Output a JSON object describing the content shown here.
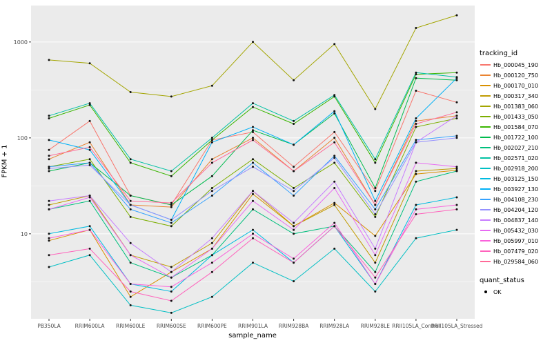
{
  "figure": {
    "y_axis_title": "FPKM + 1",
    "x_axis_title": "sample_name",
    "legend": {
      "tracking_title": "tracking_id",
      "quant_title": "quant_status",
      "ok_label": "OK"
    }
  },
  "chart_data": {
    "type": "line",
    "title": "",
    "xlabel": "sample_name",
    "ylabel": "FPKM + 1",
    "y_scale": "log10",
    "ylim": [
      1.3,
      2400
    ],
    "y_ticks": [
      10,
      100,
      1000
    ],
    "grid": true,
    "legend_position": "right",
    "panel_color": "#EBEBEB",
    "gridline_color": "#FFFFFF",
    "point_color": "#111111",
    "quant_status": {
      "label": "OK",
      "marker": "point",
      "color": "#000000"
    },
    "categories": [
      "PB350LA",
      "RRIM600LA",
      "RRIM600LE",
      "RRIM600SE",
      "RRIM600PE",
      "RRIM901LA",
      "RRIM928BA",
      "RRIM928LA",
      "RRIM928LE",
      "RRII105LA_Control",
      "RRII105LA_Stressed"
    ],
    "series": [
      {
        "name": "Hb_000045_190",
        "color": "#F8766D",
        "values": [
          75,
          150,
          25,
          20,
          95,
          115,
          50,
          115,
          28,
          310,
          235
        ]
      },
      {
        "name": "Hb_000120_750",
        "color": "#EA8331",
        "values": [
          60,
          90,
          20,
          19,
          60,
          100,
          45,
          100,
          20,
          150,
          170
        ]
      },
      {
        "name": "Hb_000170_010",
        "color": "#D89000",
        "values": [
          8.5,
          11,
          2.2,
          4,
          7,
          26,
          12,
          21,
          9.5,
          42,
          46
        ]
      },
      {
        "name": "Hb_000317_340",
        "color": "#C09B00",
        "values": [
          20,
          25,
          6,
          4.5,
          8,
          28,
          12,
          20,
          5,
          45,
          48
        ]
      },
      {
        "name": "Hb_001383_060",
        "color": "#A3A500",
        "values": [
          650,
          600,
          300,
          270,
          350,
          1000,
          400,
          950,
          200,
          1400,
          1900
        ]
      },
      {
        "name": "Hb_001433_050",
        "color": "#7CAE00",
        "values": [
          50,
          60,
          15,
          12,
          30,
          60,
          30,
          55,
          15,
          130,
          160
        ]
      },
      {
        "name": "Hb_001584_070",
        "color": "#39B600",
        "values": [
          160,
          220,
          55,
          40,
          95,
          210,
          140,
          270,
          55,
          460,
          480
        ]
      },
      {
        "name": "Hb_001722_100",
        "color": "#00BB4E",
        "values": [
          45,
          55,
          25,
          20,
          40,
          120,
          85,
          180,
          30,
          420,
          400
        ]
      },
      {
        "name": "Hb_002027_210",
        "color": "#00BF7D",
        "values": [
          18,
          22,
          5,
          3.5,
          6,
          18,
          10,
          12,
          4,
          35,
          45
        ]
      },
      {
        "name": "Hb_002571_020",
        "color": "#00C1A3",
        "values": [
          170,
          230,
          60,
          45,
          100,
          230,
          150,
          280,
          60,
          480,
          430
        ]
      },
      {
        "name": "Hb_002918_200",
        "color": "#00BFC4",
        "values": [
          4.5,
          6,
          1.8,
          1.5,
          2.2,
          5,
          3.2,
          7,
          2.5,
          9,
          11
        ]
      },
      {
        "name": "Hb_003125_150",
        "color": "#00BAE0",
        "values": [
          10,
          12,
          3,
          2.5,
          6,
          11,
          5,
          12,
          3,
          20,
          24
        ]
      },
      {
        "name": "Hb_003927_130",
        "color": "#00B0F6",
        "values": [
          95,
          75,
          20,
          14,
          90,
          130,
          85,
          190,
          22,
          160,
          420
        ]
      },
      {
        "name": "Hb_004108_230",
        "color": "#35A2FF",
        "values": [
          50,
          55,
          18,
          13,
          25,
          55,
          25,
          65,
          18,
          95,
          105
        ]
      },
      {
        "name": "Hb_004204_120",
        "color": "#9590FF",
        "values": [
          48,
          52,
          20,
          14,
          28,
          50,
          28,
          62,
          16,
          90,
          100
        ]
      },
      {
        "name": "Hb_004837_140",
        "color": "#C77CFF",
        "values": [
          22,
          25,
          8,
          4,
          9,
          28,
          13,
          35,
          7,
          90,
          170
        ]
      },
      {
        "name": "Hb_005432_030",
        "color": "#E76BF3",
        "values": [
          18,
          24,
          6,
          3.5,
          7,
          22,
          11,
          30,
          6,
          55,
          50
        ]
      },
      {
        "name": "Hb_005997_010",
        "color": "#FA62DB",
        "values": [
          9,
          11,
          3,
          2.8,
          5,
          10,
          5.5,
          13,
          3,
          18,
          20
        ]
      },
      {
        "name": "Hb_007479_020",
        "color": "#FF62BC",
        "values": [
          6,
          7,
          2.5,
          2,
          4,
          9,
          5,
          12,
          3.5,
          16,
          18
        ]
      },
      {
        "name": "Hb_029584_060",
        "color": "#FF6A98",
        "values": [
          65,
          80,
          22,
          21,
          55,
          95,
          45,
          90,
          20,
          140,
          185
        ]
      }
    ]
  }
}
